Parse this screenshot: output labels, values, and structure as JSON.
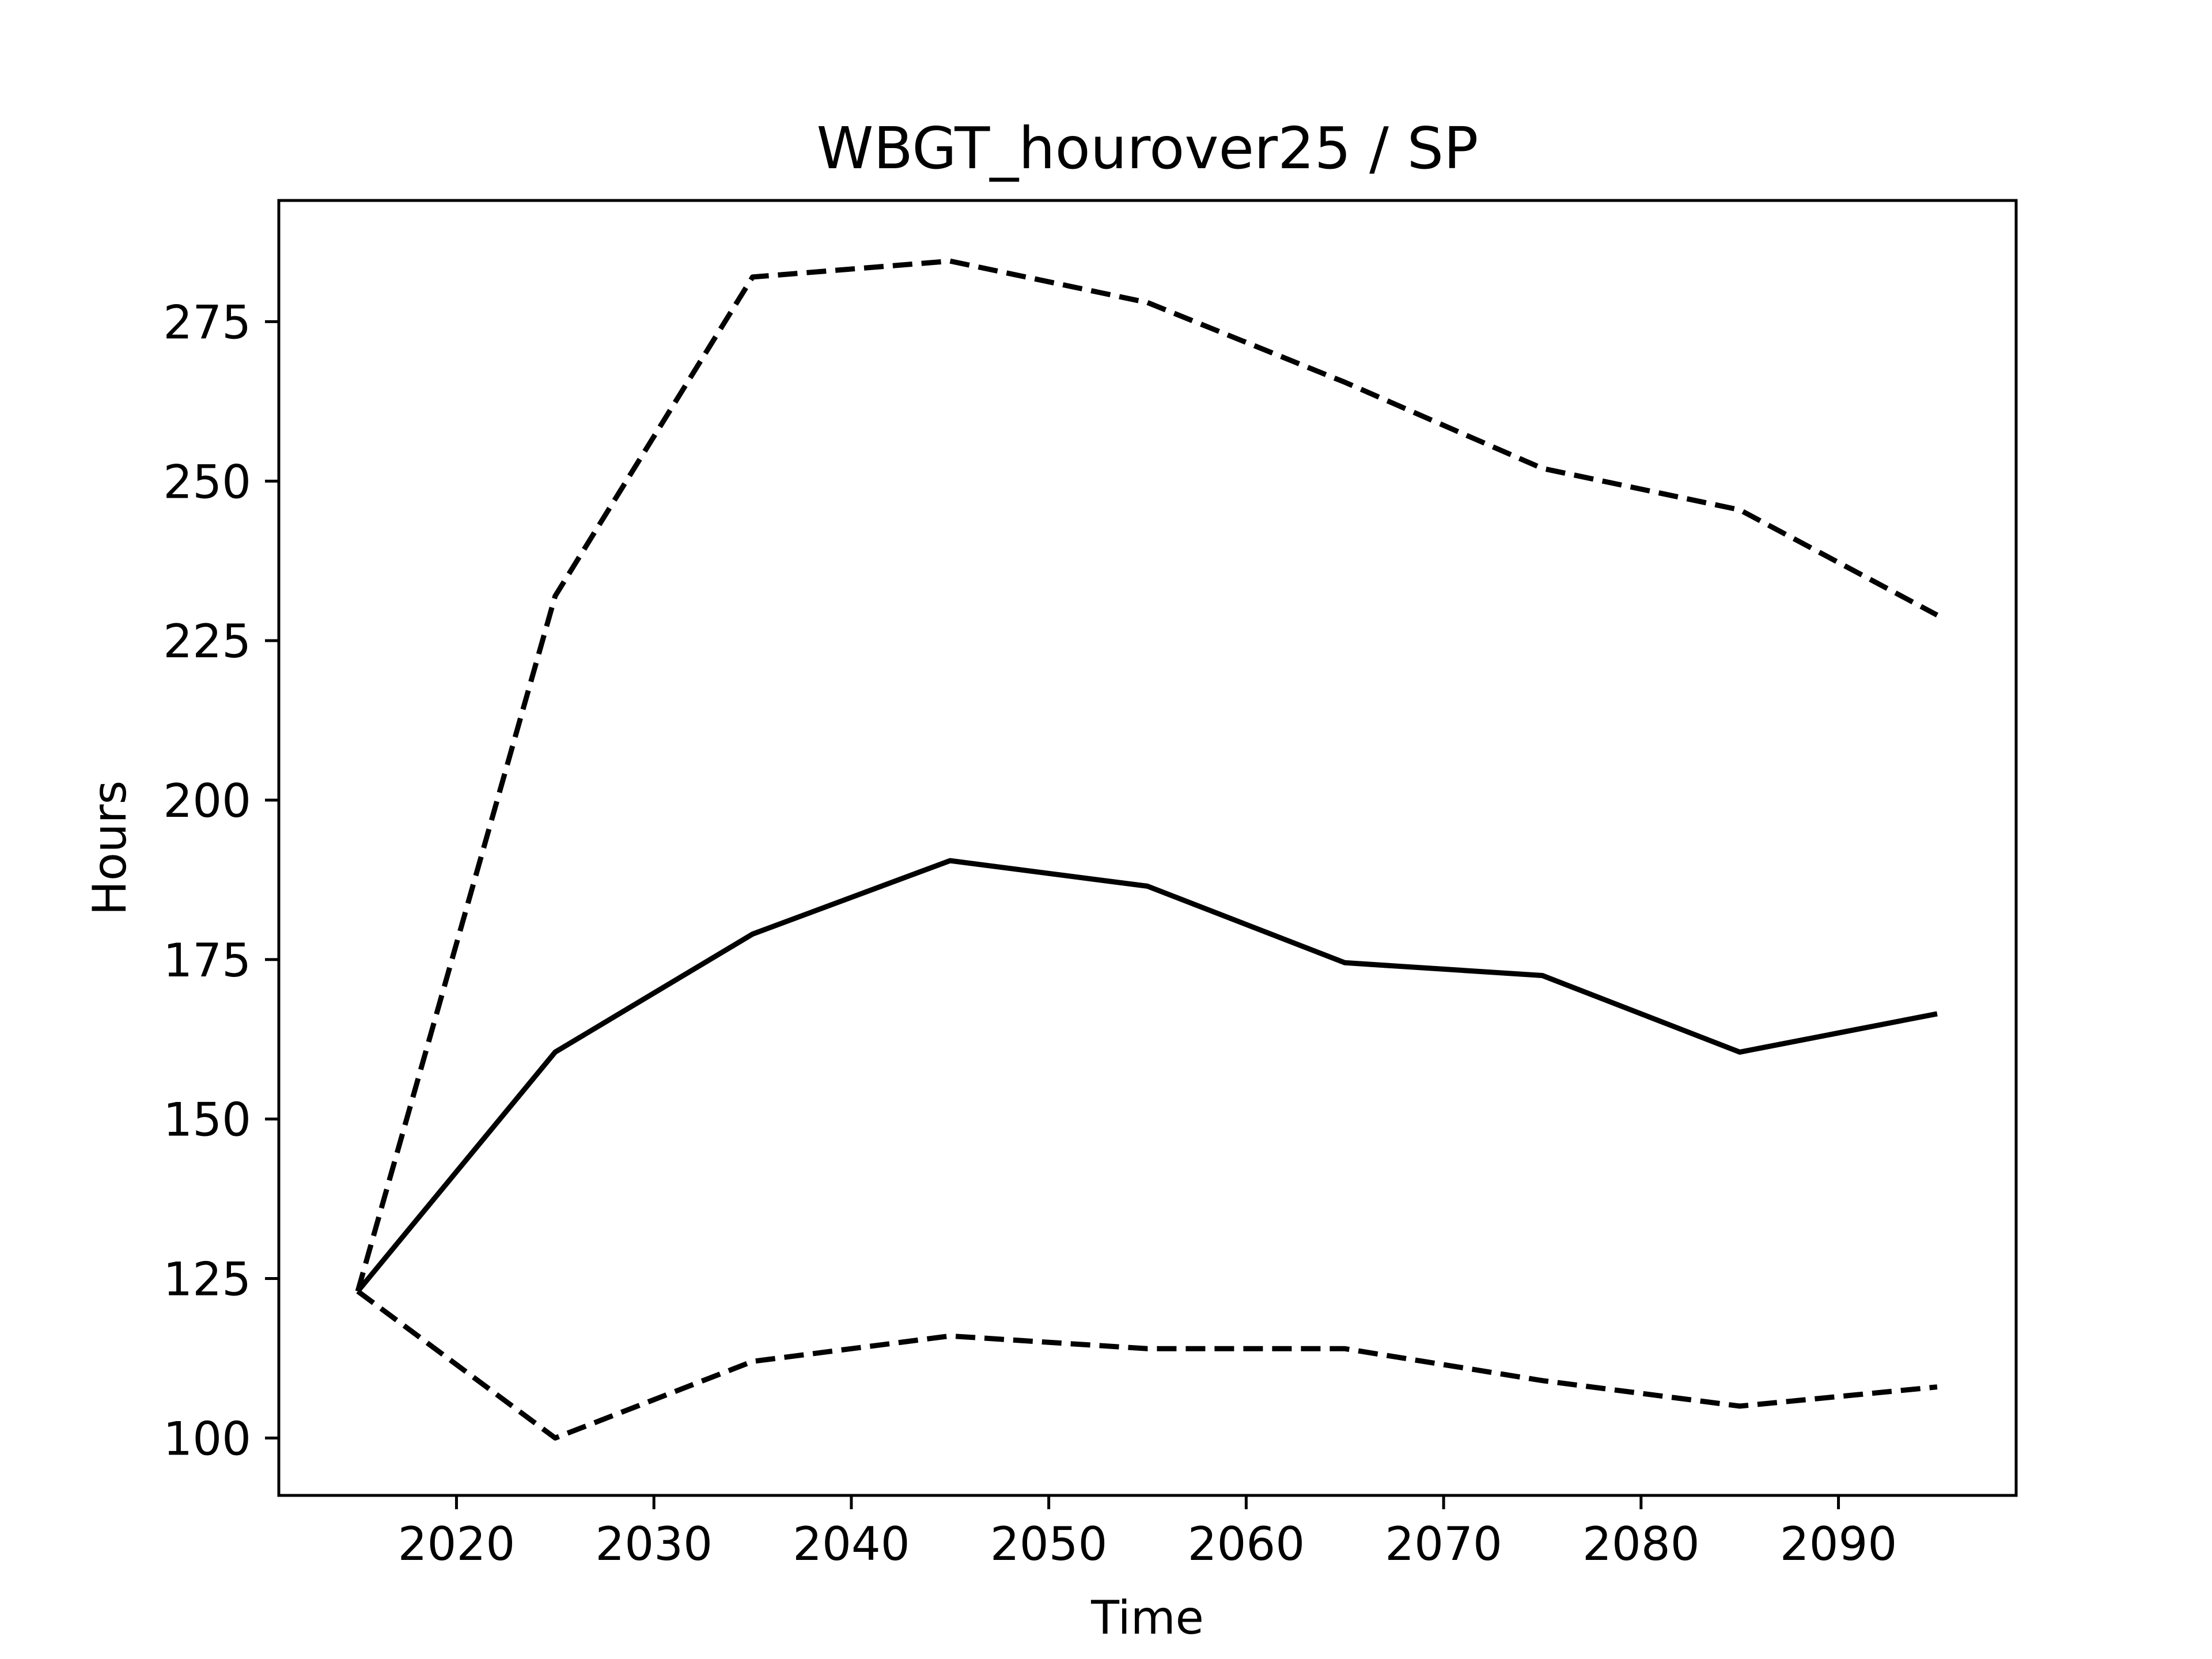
{
  "chart_data": {
    "type": "line",
    "title": "WBGT_hourover25 / SP",
    "xlabel": "Time",
    "ylabel": "Hours",
    "xlim": [
      2011,
      2099
    ],
    "ylim": [
      91,
      294
    ],
    "x_ticks": [
      2020,
      2030,
      2040,
      2050,
      2060,
      2070,
      2080,
      2090
    ],
    "y_ticks": [
      100,
      125,
      150,
      175,
      200,
      225,
      250,
      275
    ],
    "grid": false,
    "x": [
      2015,
      2025,
      2035,
      2045,
      2055,
      2065,
      2075,
      2085,
      2095
    ],
    "series": [
      {
        "values": [
          123,
          232,
          282,
          284.5,
          278,
          265.5,
          252,
          245.5,
          229
        ],
        "line_style": "dashed",
        "color": "#000000"
      },
      {
        "values": [
          123,
          160.5,
          179,
          190.5,
          186.5,
          174.5,
          172.5,
          160.5,
          166.5
        ],
        "line_style": "solid",
        "color": "#000000"
      },
      {
        "values": [
          123,
          100,
          112,
          116,
          114,
          114,
          109,
          105,
          108
        ],
        "line_style": "dashed",
        "color": "#000000"
      }
    ]
  }
}
